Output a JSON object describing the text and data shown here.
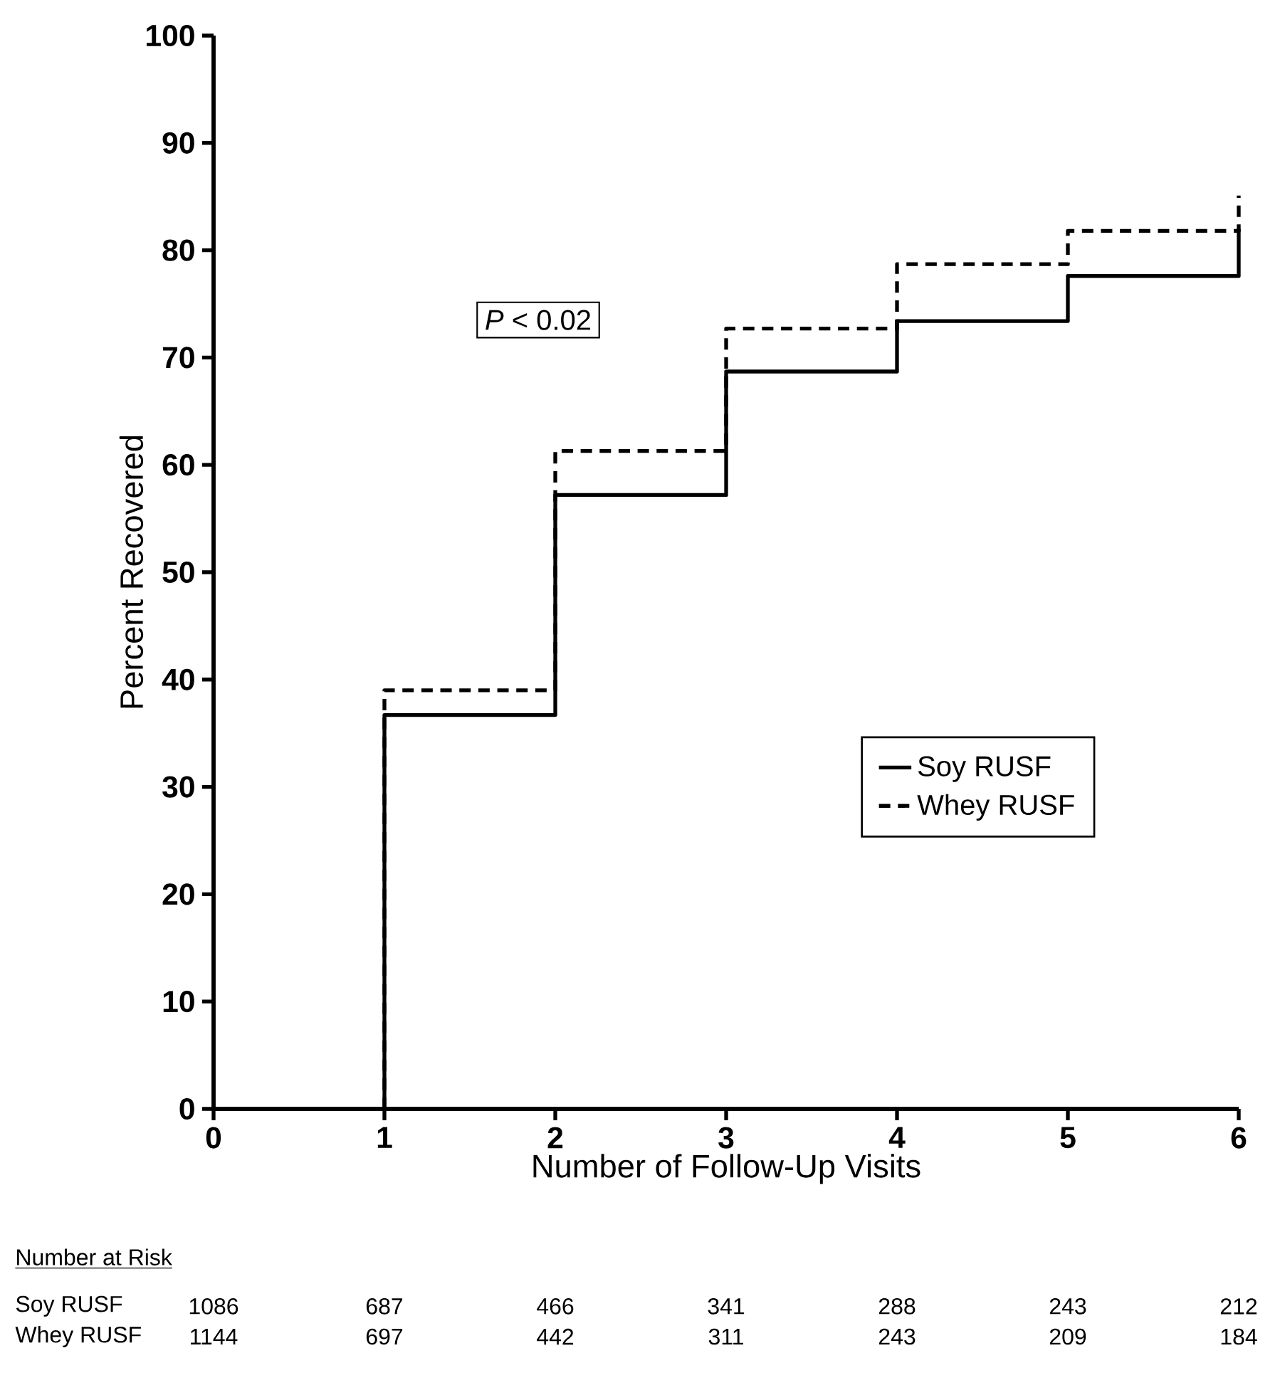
{
  "chart_data": {
    "type": "step",
    "xlabel": "Number of Follow-Up Visits",
    "ylabel": "Percent Recovered",
    "x": [
      0,
      1,
      2,
      3,
      4,
      5,
      6
    ],
    "series": [
      {
        "name": "Soy RUSF",
        "color": "#000000",
        "line_style": "solid",
        "values": [
          0,
          36.7,
          57.2,
          68.7,
          73.4,
          77.6,
          82.0
        ]
      },
      {
        "name": "Whey RUSF",
        "color": "#000000",
        "line_style": "dashed",
        "values": [
          0,
          39.0,
          61.3,
          72.7,
          78.7,
          81.8,
          85.1
        ]
      }
    ],
    "xlim": [
      0,
      6
    ],
    "xticks": [
      0,
      1,
      2,
      3,
      4,
      5,
      6
    ],
    "ylim": [
      0,
      100
    ],
    "yticks": [
      0,
      10,
      20,
      30,
      40,
      50,
      60,
      70,
      80,
      90,
      100
    ],
    "grid": false,
    "legend": "right",
    "marker": "none",
    "annotations": [
      "*P* < 0.02",
      "Number at Risk",
      "Soy RUSF",
      "1086",
      "687",
      "466",
      "341",
      "288",
      "243",
      "212",
      "Whey RUSF",
      "1144",
      "697",
      "442",
      "311",
      "243",
      "209",
      "184"
    ]
  }
}
